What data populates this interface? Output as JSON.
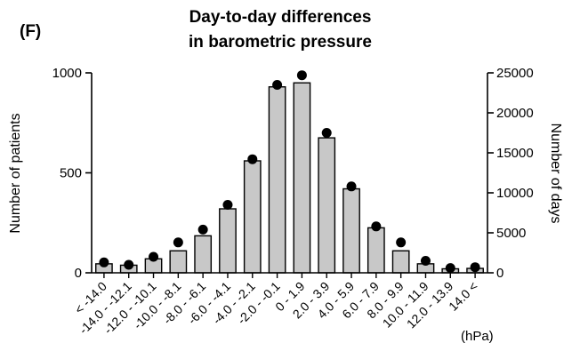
{
  "chart_data": {
    "type": "bar",
    "panel_label": "(F)",
    "title": [
      "Day-to-day differences",
      "in barometric pressure"
    ],
    "xlabel": "",
    "x_unit": "(hPa)",
    "ylabel": "Number of patients",
    "y2label": "Number of days",
    "ylim": [
      0,
      1000
    ],
    "y2lim": [
      0,
      25000
    ],
    "yticks": [
      "0",
      "500",
      "1000"
    ],
    "y2ticks": [
      "0",
      "5000",
      "10000",
      "15000",
      "20000",
      "25000"
    ],
    "grid": false,
    "categories": [
      "< -14.0",
      "-14.0 - -12.1",
      "-12.0 - -10.1",
      "-10.0 - -8.1",
      "-8.0 - -6.1",
      "-6.0 - -4.1",
      "-4.0 - -2.1",
      "-2.0 - -0.1",
      "0 - 1.9",
      "2.0 - 3.9",
      "4.0 - 5.9",
      "6.0 - 7.9",
      "8.0 - 9.9",
      "10.0 - 11.9",
      "12.0 - 13.9",
      "14.0 <"
    ],
    "series": [
      {
        "type": "bar",
        "axis": "left",
        "color": "#c8c8c8",
        "values": [
          45,
          38,
          70,
          110,
          185,
          320,
          560,
          930,
          950,
          675,
          420,
          225,
          110,
          45,
          20,
          22
        ]
      },
      {
        "type": "scatter",
        "axis": "right",
        "color": "#000000",
        "values": [
          1300,
          1000,
          2000,
          3800,
          5400,
          8500,
          14200,
          23500,
          24700,
          17500,
          10800,
          5800,
          3800,
          1500,
          600,
          700
        ]
      }
    ]
  }
}
